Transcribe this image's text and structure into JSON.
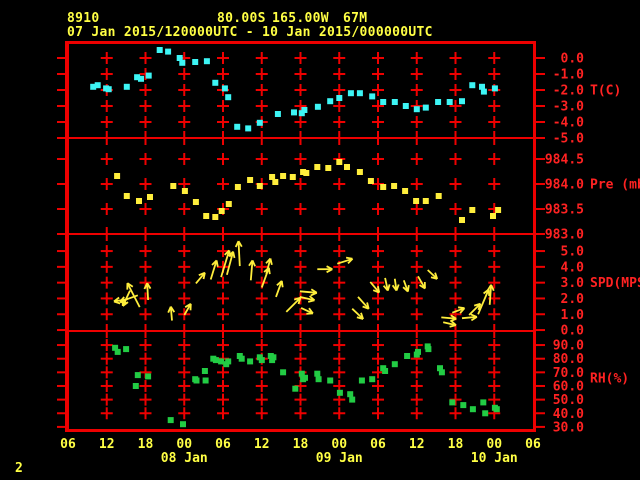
{
  "header": {
    "station_id": "8910",
    "latitude": "80.00S",
    "longitude": "165.00W",
    "elevation": "67M",
    "time_range": "07 Jan 2015/120000UTC - 10 Jan 2015/000000UTC"
  },
  "footer": {
    "page_number": "2"
  },
  "colors": {
    "background": "#000000",
    "axis_line": "#ee0000",
    "axis_text": "#ff2222",
    "header_text": "#ffff44",
    "x_label_text": "#ffff44",
    "temperature": "#3df5f5",
    "pressure": "#ffee3c",
    "wind": "#ffee3c",
    "humidity": "#22cc44"
  },
  "x_axis": {
    "tick_interval_hours": 6,
    "hours_span": 72,
    "tick_labels": [
      "06",
      "12",
      "18",
      "00",
      "06",
      "12",
      "18",
      "00",
      "06",
      "12",
      "18",
      "00",
      "06"
    ],
    "date_labels": [
      {
        "text": "08 Jan",
        "tick_index": 3
      },
      {
        "text": "09 Jan",
        "tick_index": 7
      },
      {
        "text": "10 Jan",
        "tick_index": 11
      }
    ]
  },
  "chart_data": [
    {
      "type": "scatter",
      "name": "temperature",
      "ylabel": "T(C)",
      "color_key": "temperature",
      "ylim_top": 1.0,
      "ylim_bottom": -5.0,
      "tick_values": [
        0,
        -1,
        -2,
        -3,
        -4,
        -5
      ],
      "tick_labels": [
        "0.0",
        "-1.0",
        "-2.0",
        "-3.0",
        "-4.0",
        "-5.0"
      ],
      "unit_label_value": -2,
      "points": [
        [
          3.9,
          -1.8
        ],
        [
          4.6,
          -1.7
        ],
        [
          5.9,
          -1.9
        ],
        [
          6.3,
          -1.95
        ],
        [
          9.1,
          -1.8
        ],
        [
          10.7,
          -1.2
        ],
        [
          11.3,
          -1.3
        ],
        [
          12.5,
          -1.1
        ],
        [
          14.2,
          0.5
        ],
        [
          15.5,
          0.4
        ],
        [
          17.3,
          0.0
        ],
        [
          17.7,
          -0.3
        ],
        [
          19.7,
          -0.25
        ],
        [
          21.5,
          -0.2
        ],
        [
          22.8,
          -1.55
        ],
        [
          24.3,
          -1.9
        ],
        [
          24.8,
          -2.45
        ],
        [
          26.2,
          -4.3
        ],
        [
          27.9,
          -4.4
        ],
        [
          29.7,
          -4.05
        ],
        [
          32.5,
          -3.5
        ],
        [
          35.0,
          -3.4
        ],
        [
          36.2,
          -3.45
        ],
        [
          36.6,
          -3.25
        ],
        [
          38.7,
          -3.05
        ],
        [
          40.6,
          -2.7
        ],
        [
          42.0,
          -2.5
        ],
        [
          43.8,
          -2.2
        ],
        [
          45.2,
          -2.2
        ],
        [
          47.1,
          -2.4
        ],
        [
          48.8,
          -2.75
        ],
        [
          50.6,
          -2.75
        ],
        [
          52.3,
          -3.0
        ],
        [
          54.0,
          -3.2
        ],
        [
          55.4,
          -3.1
        ],
        [
          57.3,
          -2.75
        ],
        [
          59.1,
          -2.75
        ],
        [
          61.0,
          -2.7
        ],
        [
          62.6,
          -1.7
        ],
        [
          64.1,
          -1.8
        ],
        [
          64.4,
          -2.1
        ],
        [
          66.1,
          -1.9
        ]
      ]
    },
    {
      "type": "scatter",
      "name": "pressure",
      "ylabel": "Pre (mb)",
      "color_key": "pressure",
      "ylim_top": 984.92,
      "ylim_bottom": 983.0,
      "tick_values": [
        984.5,
        984.0,
        983.5,
        983.0
      ],
      "tick_labels": [
        "984.5",
        "984.0",
        "983.5",
        "983.0"
      ],
      "unit_label_value": 984.0,
      "points": [
        [
          7.6,
          984.16
        ],
        [
          9.1,
          983.76
        ],
        [
          11.0,
          983.66
        ],
        [
          12.7,
          983.74
        ],
        [
          16.3,
          983.96
        ],
        [
          18.1,
          983.86
        ],
        [
          19.8,
          983.64
        ],
        [
          21.4,
          983.36
        ],
        [
          22.8,
          983.34
        ],
        [
          23.8,
          983.46
        ],
        [
          24.9,
          983.6
        ],
        [
          26.3,
          983.94
        ],
        [
          28.2,
          984.08
        ],
        [
          29.7,
          983.96
        ],
        [
          31.6,
          984.14
        ],
        [
          32.1,
          984.04
        ],
        [
          33.3,
          984.16
        ],
        [
          34.8,
          984.14
        ],
        [
          36.4,
          984.24
        ],
        [
          36.9,
          984.22
        ],
        [
          38.6,
          984.34
        ],
        [
          40.3,
          984.32
        ],
        [
          42.0,
          984.44
        ],
        [
          43.2,
          984.34
        ],
        [
          45.2,
          984.24
        ],
        [
          46.9,
          984.06
        ],
        [
          48.8,
          983.94
        ],
        [
          50.5,
          983.96
        ],
        [
          52.2,
          983.86
        ],
        [
          53.9,
          983.66
        ],
        [
          55.4,
          983.66
        ],
        [
          57.4,
          983.76
        ],
        [
          61.0,
          983.28
        ],
        [
          62.6,
          983.48
        ],
        [
          65.8,
          983.36
        ],
        [
          66.6,
          983.48
        ]
      ]
    },
    {
      "type": "wind-vectors",
      "name": "wind-speed",
      "ylabel": "SPD(MPS)",
      "color_key": "wind",
      "ylim_top": 6.08,
      "ylim_bottom": -0.06,
      "tick_values": [
        5,
        4,
        3,
        2,
        1,
        0
      ],
      "tick_labels": [
        "5.0",
        "4.0",
        "3.0",
        "2.0",
        "1.0",
        "0.0"
      ],
      "unit_label_value": 3,
      "arrows": [
        [
          11.1,
          1.45,
          333,
          27
        ],
        [
          10.8,
          2.2,
          250,
          19
        ],
        [
          9.6,
          2.5,
          205,
          17
        ],
        [
          9.1,
          1.95,
          260,
          13
        ],
        [
          12.4,
          1.9,
          357,
          17
        ],
        [
          16.1,
          0.6,
          355,
          14
        ],
        [
          18.0,
          0.95,
          30,
          13
        ],
        [
          19.8,
          2.95,
          40,
          14
        ],
        [
          22.1,
          3.2,
          17,
          20
        ],
        [
          23.7,
          3.35,
          17,
          28
        ],
        [
          24.6,
          3.5,
          15,
          24
        ],
        [
          26.6,
          4.05,
          357,
          25
        ],
        [
          28.3,
          3.15,
          5,
          20
        ],
        [
          30.0,
          2.7,
          20,
          21
        ],
        [
          30.7,
          3.55,
          15,
          16
        ],
        [
          32.2,
          2.1,
          20,
          17
        ],
        [
          33.8,
          1.15,
          45,
          20
        ],
        [
          35.9,
          2.45,
          95,
          17
        ],
        [
          35.9,
          2.1,
          103,
          15
        ],
        [
          36.1,
          1.4,
          115,
          13
        ],
        [
          38.6,
          3.85,
          90,
          15
        ],
        [
          41.7,
          4.2,
          72,
          16
        ],
        [
          44.0,
          1.35,
          133,
          15
        ],
        [
          44.9,
          2.1,
          138,
          16
        ],
        [
          46.8,
          3.05,
          140,
          14
        ],
        [
          49.1,
          3.3,
          168,
          13
        ],
        [
          50.6,
          3.25,
          172,
          12
        ],
        [
          52.0,
          3.15,
          160,
          12
        ],
        [
          54.2,
          3.4,
          150,
          14
        ],
        [
          55.7,
          3.8,
          133,
          13
        ],
        [
          57.8,
          0.8,
          95,
          15
        ],
        [
          58.1,
          0.5,
          103,
          13
        ],
        [
          59.5,
          1.1,
          70,
          13
        ],
        [
          61.0,
          0.75,
          85,
          15
        ],
        [
          62.1,
          0.95,
          45,
          16
        ],
        [
          63.5,
          1.0,
          23,
          27
        ],
        [
          65.3,
          1.6,
          4,
          20
        ]
      ]
    },
    {
      "type": "scatter",
      "name": "relative-humidity",
      "ylabel": "RH(%)",
      "color_key": "humidity",
      "ylim_top": 100.3,
      "ylim_bottom": 27.0,
      "tick_values": [
        90,
        80,
        70,
        60,
        50,
        40,
        30
      ],
      "tick_labels": [
        "90.0",
        "80.0",
        "70.0",
        "60.0",
        "50.0",
        "40.0",
        "30.0"
      ],
      "unit_label_value": 66,
      "points": [
        [
          7.3,
          88
        ],
        [
          7.7,
          85
        ],
        [
          9.0,
          87
        ],
        [
          10.5,
          60
        ],
        [
          10.8,
          68
        ],
        [
          12.4,
          67
        ],
        [
          15.9,
          35
        ],
        [
          17.8,
          32
        ],
        [
          19.7,
          65
        ],
        [
          19.9,
          64
        ],
        [
          21.2,
          71
        ],
        [
          21.3,
          64
        ],
        [
          22.5,
          80
        ],
        [
          22.9,
          79
        ],
        [
          23.7,
          78
        ],
        [
          24.5,
          76
        ],
        [
          24.8,
          78
        ],
        [
          26.6,
          82
        ],
        [
          26.9,
          80
        ],
        [
          28.2,
          78
        ],
        [
          29.7,
          81
        ],
        [
          30.0,
          79
        ],
        [
          31.4,
          82
        ],
        [
          31.6,
          79
        ],
        [
          31.8,
          81
        ],
        [
          33.3,
          70
        ],
        [
          35.2,
          58
        ],
        [
          36.2,
          69
        ],
        [
          36.4,
          65
        ],
        [
          36.7,
          66
        ],
        [
          38.6,
          69
        ],
        [
          38.8,
          65
        ],
        [
          40.6,
          64
        ],
        [
          42.1,
          55
        ],
        [
          43.7,
          54
        ],
        [
          44.0,
          50
        ],
        [
          45.5,
          64
        ],
        [
          47.1,
          65
        ],
        [
          48.8,
          73
        ],
        [
          49.1,
          71
        ],
        [
          50.6,
          76
        ],
        [
          52.5,
          82
        ],
        [
          54.0,
          83
        ],
        [
          54.2,
          85
        ],
        [
          55.7,
          89
        ],
        [
          55.8,
          87
        ],
        [
          57.6,
          73
        ],
        [
          57.9,
          70
        ],
        [
          59.5,
          48
        ],
        [
          61.2,
          46
        ],
        [
          62.7,
          43
        ],
        [
          64.3,
          48
        ],
        [
          64.6,
          40
        ],
        [
          66.1,
          44
        ],
        [
          66.4,
          43
        ]
      ]
    }
  ]
}
